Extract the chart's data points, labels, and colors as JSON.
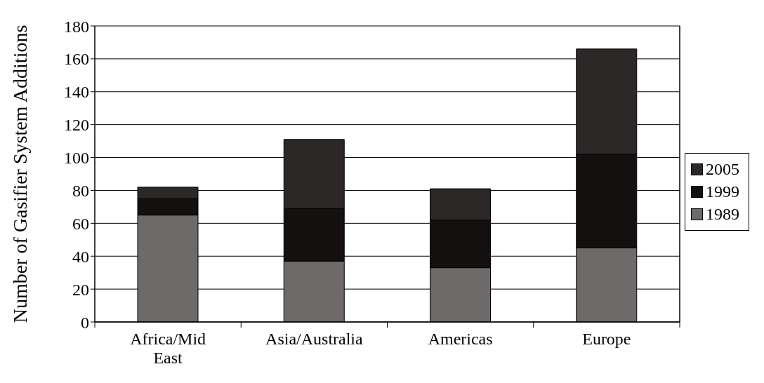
{
  "chart_data": {
    "type": "bar",
    "ylabel": "Number of Gasifier System Additions",
    "categories": [
      "Africa/Mid East",
      "Asia/Australia",
      "Americas",
      "Europe"
    ],
    "series": [
      {
        "name": "1989",
        "color": "#6e6a6a",
        "values": [
          65,
          37,
          33,
          45
        ]
      },
      {
        "name": "1999",
        "color": "#141010",
        "values": [
          10,
          32,
          29,
          57
        ]
      },
      {
        "name": "2005",
        "color": "#2c2828",
        "values": [
          7,
          42,
          19,
          64
        ]
      }
    ],
    "stacked": true,
    "ylim": [
      0,
      180
    ],
    "yticks": [
      0,
      20,
      40,
      60,
      80,
      100,
      120,
      140,
      160,
      180
    ],
    "grid": "y",
    "legend": "right"
  }
}
